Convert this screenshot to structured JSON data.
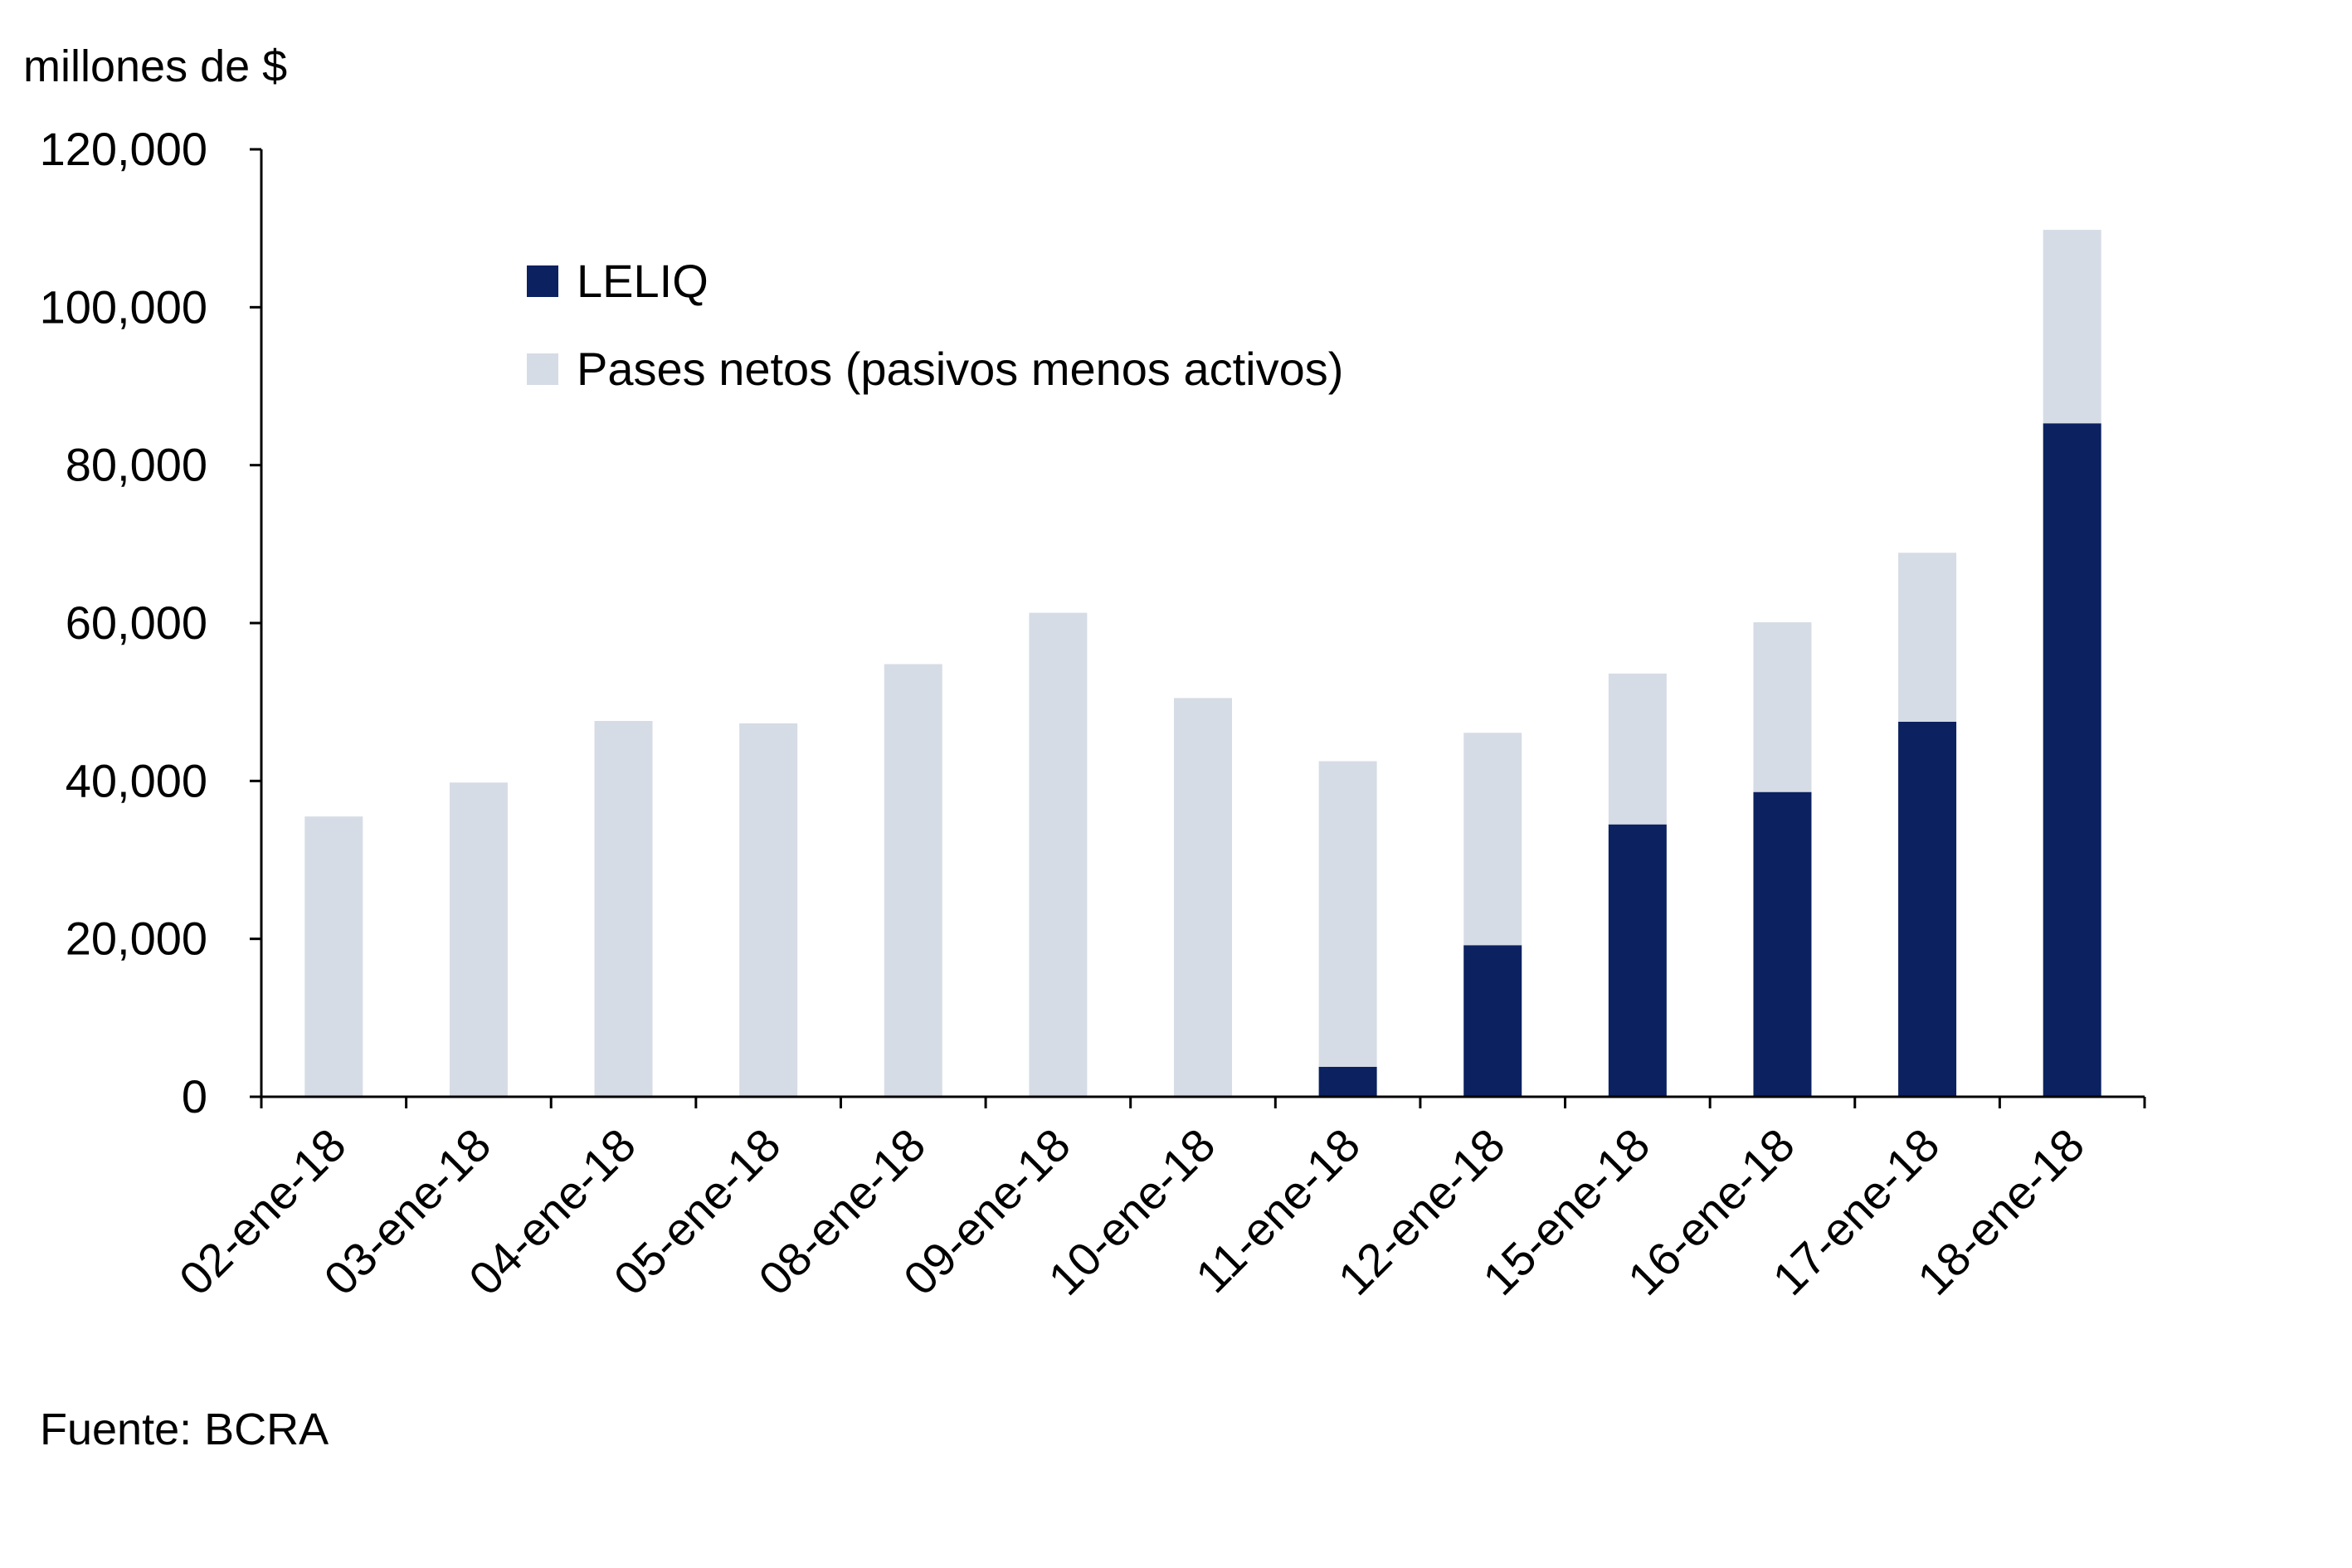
{
  "chart_data": {
    "type": "bar",
    "stacked": true,
    "ylabel": "millones de $",
    "ylim": [
      0,
      120000
    ],
    "yticks": [
      0,
      20000,
      40000,
      60000,
      80000,
      100000,
      120000
    ],
    "ytick_labels": [
      "0",
      "20,000",
      "40,000",
      "60,000",
      "80,000",
      "100,000",
      "120,000"
    ],
    "categories": [
      "02-ene-18",
      "03-ene-18",
      "04-ene-18",
      "05-ene-18",
      "08-ene-18",
      "09-ene-18",
      "10-ene-18",
      "11-ene-18",
      "12-ene-18",
      "15-ene-18",
      "16-ene-18",
      "17-ene-18",
      "18-ene-18"
    ],
    "series": [
      {
        "name": "LELIQ",
        "color": "#0b2160",
        "values": [
          0,
          0,
          0,
          0,
          0,
          0,
          0,
          3800,
          19200,
          34500,
          38600,
          47500,
          85300
        ]
      },
      {
        "name": "Pases netos (pasivos menos activos)",
        "color": "#d6dce5",
        "values": [
          35500,
          39800,
          47600,
          47300,
          54800,
          61300,
          50500,
          38700,
          26900,
          19100,
          21500,
          21400,
          24500
        ]
      }
    ],
    "legend_position": "top-left",
    "grid": false,
    "source": "Fuente:  BCRA"
  }
}
